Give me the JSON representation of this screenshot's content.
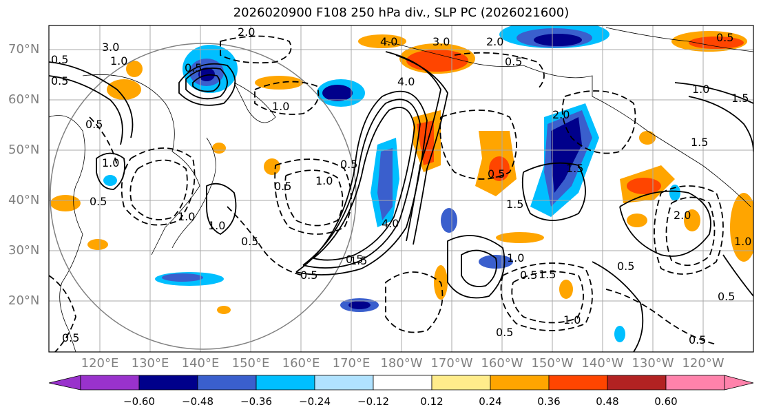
{
  "title": "2026020900 F108 250 hPa div., SLP PC (2026021600)",
  "lat_labels": [
    "70°N",
    "60°N",
    "50°N",
    "40°N",
    "30°N",
    "20°N"
  ],
  "lon_labels": [
    "120°E",
    "130°E",
    "140°E",
    "150°E",
    "160°E",
    "170°E",
    "180°W",
    "170°W",
    "160°W",
    "150°W",
    "140°W",
    "130°W",
    "120°W"
  ],
  "colorbar": {
    "ticks": [
      "−0.60",
      "−0.48",
      "−0.36",
      "−0.24",
      "−0.12",
      "0.12",
      "0.24",
      "0.36",
      "0.48",
      "0.60"
    ],
    "colors": [
      "#9932cc",
      "#00008b",
      "#3a5fcd",
      "#00bfff",
      "#b0e2ff",
      "#ffffff",
      "#ffec8b",
      "#ffa500",
      "#ff4500",
      "#b22222",
      "#ff82ab"
    ]
  },
  "contour_labels": [
    "2.0",
    "3.0",
    "4.0",
    "3.0",
    "2.0",
    "0.5",
    "0.5",
    "1.0",
    "1.5",
    "0.5",
    "1.0",
    "0.5",
    "4.0",
    "0.5",
    "1.0",
    "1.5",
    "2.0",
    "1.5",
    "0.5",
    "1.0",
    "0.5",
    "1.0",
    "0.5",
    "1.0",
    "0.5",
    "1.5",
    "0.5",
    "0.5",
    "4.0",
    "1.0",
    "0.5",
    "0.5",
    "1.5",
    "1.5",
    "0.5",
    "0.5",
    "1.0",
    "0.5",
    "2.0",
    "1.0",
    "0.5",
    "0.5",
    "0.5",
    "1.0"
  ]
}
